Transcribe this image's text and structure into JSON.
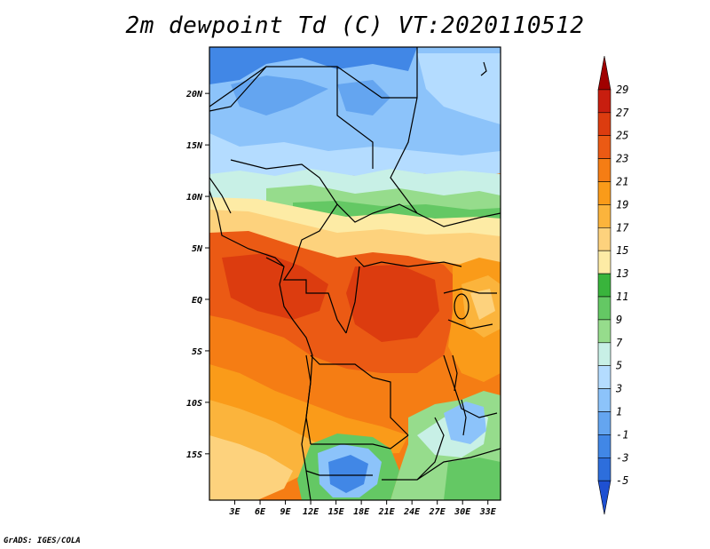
{
  "title": "2m dewpoint Td (C) VT:2020110512",
  "credit": "GrADS: IGES/COLA",
  "map": {
    "lat_labels": [
      "20N",
      "15N",
      "10N",
      "5N",
      "EQ",
      "5S",
      "10S",
      "15S"
    ],
    "lat_values": [
      20,
      15,
      10,
      5,
      0,
      -5,
      -10,
      -15
    ],
    "lon_labels": [
      "3E",
      "6E",
      "9E",
      "12E",
      "15E",
      "18E",
      "21E",
      "24E",
      "27E",
      "30E",
      "33E"
    ],
    "lon_values": [
      3,
      6,
      9,
      12,
      15,
      18,
      21,
      24,
      27,
      30,
      33
    ],
    "lon_range": [
      0,
      34.5
    ],
    "lat_range": [
      -19.5,
      24.5
    ]
  },
  "colorbar": {
    "levels": [
      "29",
      "27",
      "25",
      "23",
      "21",
      "19",
      "17",
      "15",
      "13",
      "11",
      "9",
      "7",
      "5",
      "3",
      "1",
      "-1",
      "-3",
      "-5"
    ],
    "colors": [
      "#a00000",
      "#c81e0f",
      "#dc3c0f",
      "#eb5a14",
      "#f57d14",
      "#fa9b19",
      "#fbb43c",
      "#fdd27d",
      "#fdeba5",
      "#39b43c",
      "#64c864",
      "#96dc8c",
      "#c8f0e6",
      "#b4dcff",
      "#8cc3fa",
      "#64a5f0",
      "#4187e6",
      "#2d6edc",
      "#1e50d2"
    ]
  }
}
